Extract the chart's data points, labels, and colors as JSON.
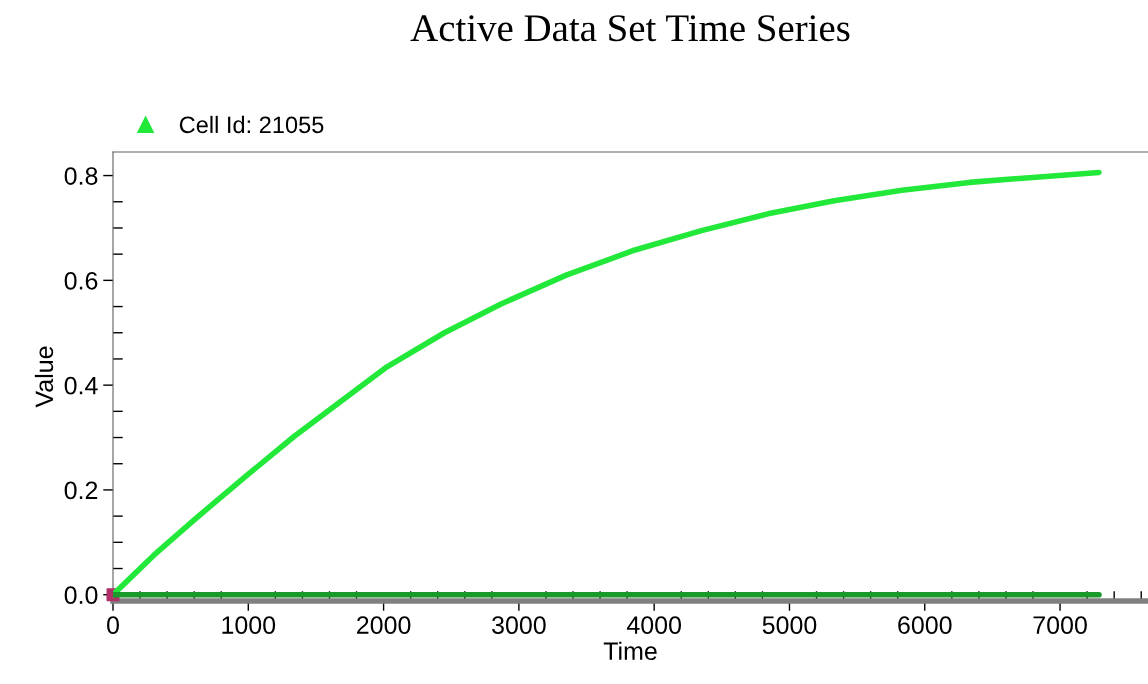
{
  "chart_data": {
    "type": "line",
    "title": "Active Data Set Time Series",
    "xlabel": "Time",
    "ylabel": "Value",
    "x": [
      0,
      300,
      600,
      1000,
      1338,
      1700,
      2025,
      2450,
      2868,
      3350,
      3858,
      4350,
      4841,
      5330,
      5832,
      6330,
      6822,
      7288
    ],
    "series": [
      {
        "name": "Cell Id: 21055",
        "color": "#22e83a",
        "values": [
          0.0,
          0.075,
          0.143,
          0.23,
          0.302,
          0.372,
          0.435,
          0.5,
          0.555,
          0.61,
          0.658,
          0.695,
          0.727,
          0.752,
          0.772,
          0.787,
          0.797,
          0.806
        ]
      },
      {
        "color": "#1a9a2a",
        "values": [
          0,
          0,
          0,
          0,
          0,
          0,
          0,
          0,
          0,
          0,
          0,
          0,
          0,
          0,
          0,
          0,
          0,
          0
        ]
      },
      {
        "type": "scatter",
        "color": "#b0306a",
        "marker": "square",
        "x": [
          0
        ],
        "values": [
          0.0
        ]
      }
    ],
    "xlim": [
      0,
      7650
    ],
    "ylim": [
      -0.012,
      0.845
    ],
    "xticks": [
      0,
      1000,
      2000,
      3000,
      4000,
      5000,
      6000,
      7000
    ],
    "yticks": [
      {
        "value": 0,
        "label": "0.0"
      },
      {
        "value": 0.2,
        "label": "0.2"
      },
      {
        "value": 0.4,
        "label": "0.4"
      },
      {
        "value": 0.6,
        "label": "0.6"
      },
      {
        "value": 0.8,
        "label": "0.8"
      }
    ],
    "grid": false,
    "legend": "top left"
  }
}
